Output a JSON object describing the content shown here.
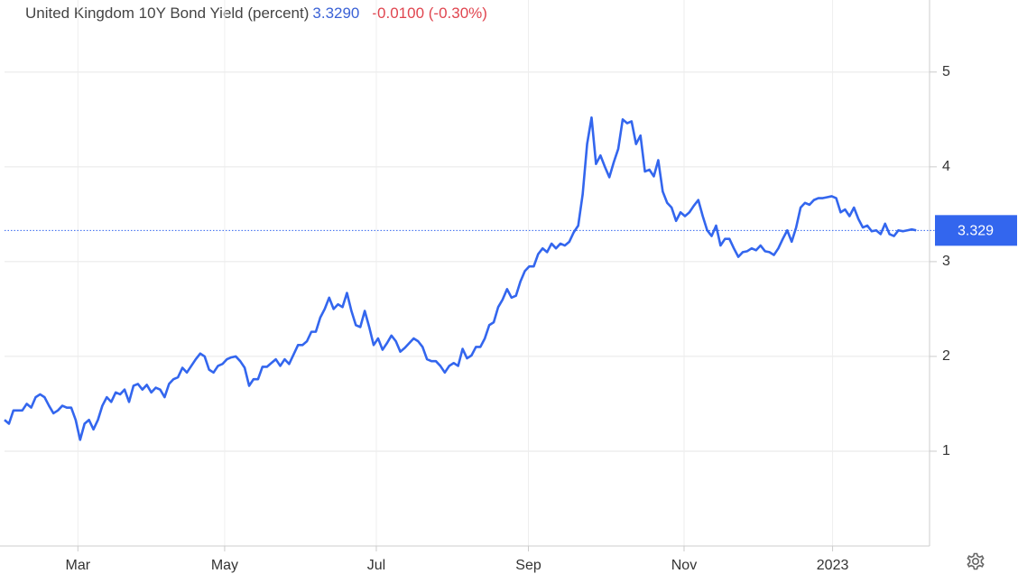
{
  "chart_data": {
    "type": "line",
    "title": "United Kingdom 10Y Bond Yield (percent)",
    "header_value": "3.3290",
    "header_change": "-0.0100 (-0.30%)",
    "current": {
      "value": 3.329,
      "label": "3.329"
    },
    "color": "#3366ee",
    "grid": true,
    "categories": [
      null,
      null,
      null,
      null,
      null,
      null,
      null,
      null,
      null,
      null,
      null,
      null,
      null,
      null,
      null,
      null,
      null,
      null,
      null,
      null,
      null,
      null,
      null,
      null,
      null,
      null,
      null,
      null,
      null,
      null,
      null,
      null,
      null,
      null,
      null,
      null,
      null,
      null,
      null,
      null,
      null,
      null,
      null,
      null,
      null,
      null,
      null,
      null,
      null,
      null,
      null,
      null,
      null,
      null,
      null,
      null,
      null,
      null,
      null,
      null,
      null,
      null,
      null,
      null,
      null,
      null,
      null,
      null,
      null,
      null,
      null,
      null,
      null,
      null,
      null,
      null,
      null,
      null,
      null,
      null,
      null,
      null,
      null,
      null,
      null,
      null,
      null,
      null,
      null,
      null,
      null,
      null,
      null,
      null,
      null,
      null,
      null,
      null,
      null,
      null,
      null,
      null,
      null,
      null,
      null,
      null,
      null,
      null,
      null,
      null,
      null,
      null,
      null,
      null,
      null,
      null,
      null,
      null,
      null,
      null,
      null,
      null,
      null,
      null,
      null,
      null,
      null,
      null,
      null,
      null,
      null,
      null,
      null,
      null,
      null,
      null,
      null,
      null,
      null,
      null,
      null,
      null,
      null,
      null,
      null,
      null,
      null,
      null,
      null,
      null,
      null,
      null,
      null,
      null,
      null,
      null,
      null,
      null,
      null,
      null,
      null,
      null,
      null,
      null,
      null,
      null,
      null,
      null,
      null,
      null,
      null,
      null,
      null,
      null,
      null,
      null,
      null,
      null,
      null,
      null,
      null,
      null,
      null,
      null,
      null,
      null,
      null,
      null,
      null,
      null,
      null,
      null,
      null,
      null,
      null,
      null,
      null,
      null,
      null,
      null,
      null,
      null,
      null,
      null,
      null,
      null
    ],
    "values": [
      1.33,
      1.29,
      1.43,
      1.43,
      1.43,
      1.5,
      1.46,
      1.57,
      1.6,
      1.57,
      1.48,
      1.4,
      1.43,
      1.48,
      1.46,
      1.46,
      1.33,
      1.12,
      1.29,
      1.33,
      1.23,
      1.33,
      1.48,
      1.57,
      1.52,
      1.62,
      1.6,
      1.65,
      1.52,
      1.69,
      1.71,
      1.65,
      1.7,
      1.62,
      1.67,
      1.65,
      1.57,
      1.71,
      1.76,
      1.78,
      1.88,
      1.83,
      1.9,
      1.97,
      2.03,
      2.0,
      1.86,
      1.83,
      1.9,
      1.92,
      1.97,
      1.99,
      2.0,
      1.95,
      1.88,
      1.69,
      1.76,
      1.76,
      1.89,
      1.89,
      1.93,
      1.97,
      1.9,
      1.97,
      1.92,
      2.02,
      2.12,
      2.12,
      2.16,
      2.26,
      2.26,
      2.41,
      2.5,
      2.62,
      2.5,
      2.55,
      2.52,
      2.67,
      2.48,
      2.33,
      2.31,
      2.48,
      2.31,
      2.12,
      2.19,
      2.07,
      2.14,
      2.22,
      2.16,
      2.05,
      2.09,
      2.14,
      2.19,
      2.16,
      2.1,
      1.97,
      1.95,
      1.95,
      1.9,
      1.83,
      1.9,
      1.93,
      1.9,
      2.08,
      1.98,
      2.01,
      2.1,
      2.1,
      2.19,
      2.33,
      2.36,
      2.52,
      2.6,
      2.71,
      2.62,
      2.64,
      2.79,
      2.9,
      2.95,
      2.95,
      3.08,
      3.14,
      3.1,
      3.19,
      3.14,
      3.19,
      3.17,
      3.21,
      3.31,
      3.38,
      3.71,
      4.24,
      4.52,
      4.03,
      4.12,
      4.0,
      3.89,
      4.05,
      4.19,
      4.5,
      4.46,
      4.48,
      4.24,
      4.33,
      3.95,
      3.97,
      3.9,
      4.07,
      3.74,
      3.62,
      3.57,
      3.43,
      3.52,
      3.48,
      3.52,
      3.59,
      3.65,
      3.48,
      3.33,
      3.27,
      3.38,
      3.17,
      3.24,
      3.24,
      3.14,
      3.05,
      3.1,
      3.11,
      3.14,
      3.12,
      3.17,
      3.11,
      3.1,
      3.07,
      3.14,
      3.24,
      3.33,
      3.21,
      3.36,
      3.57,
      3.62,
      3.6,
      3.65,
      3.67,
      3.67,
      3.68,
      3.69,
      3.67,
      3.52,
      3.55,
      3.48,
      3.57,
      3.45,
      3.36,
      3.38,
      3.32,
      3.33,
      3.29,
      3.4,
      3.29,
      3.27,
      3.33,
      3.32,
      3.33,
      3.34,
      3.33
    ],
    "xlim": [
      0,
      208
    ],
    "xticks": [
      {
        "value": 16.5,
        "label": "Mar"
      },
      {
        "value": 49.5,
        "label": "May"
      },
      {
        "value": 83.6,
        "label": "Jul"
      },
      {
        "value": 117.8,
        "label": "Sep"
      },
      {
        "value": 152.8,
        "label": "Nov"
      },
      {
        "value": 186.2,
        "label": "2023"
      }
    ],
    "ylim": [
      0,
      5.76
    ],
    "yticks": [
      1,
      2,
      3,
      4,
      5
    ]
  }
}
